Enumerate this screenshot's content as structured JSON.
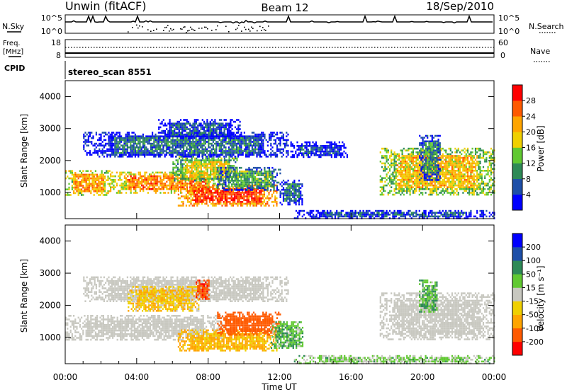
{
  "header": {
    "station": "Unwin (fitACF)",
    "beam": "Beam 12",
    "date": "18/Sep/2010"
  },
  "noise_panel": {
    "left_label": "N.Sky",
    "right_label": "N.Search",
    "tick_top": "10^5",
    "tick_bottom": "10^0"
  },
  "freq_panel": {
    "left_label_1": "Freq.",
    "left_label_2": "[MHz]",
    "left_tick_top": "18",
    "left_tick_bottom": "8",
    "right_label": "Nave",
    "right_tick_top": "60",
    "right_tick_bottom": "0"
  },
  "cpid": {
    "label": "CPID",
    "value": "stereo_scan 8551"
  },
  "colors": {
    "scale": [
      "#0000ff",
      "#1e4fa8",
      "#2e8a57",
      "#61c932",
      "#f0d000",
      "#ffa500",
      "#ff5a00",
      "#ff0000"
    ],
    "velocity": [
      "#ff0000",
      "#ff5a00",
      "#ffa500",
      "#f0d000",
      "#c8c8c0",
      "#61c932",
      "#2e8a57",
      "#1e4fa8",
      "#0000ff"
    ]
  },
  "chart_data": [
    {
      "type": "heatmap",
      "name": "power",
      "ylabel": "Slant Range [km]",
      "ylim": [
        180,
        4500
      ],
      "y_ticks": [
        "1000",
        "2000",
        "3000",
        "4000"
      ],
      "xlim": [
        0,
        24
      ],
      "colorbar_label": "Power [dB]",
      "colorbar_ticks": [
        "4",
        "8",
        "12",
        "16",
        "20",
        "24",
        "28"
      ],
      "colorbar_range": [
        0,
        32
      ],
      "regions": [
        {
          "t0": 0.0,
          "t1": 2.5,
          "r0": 950,
          "r1": 1700,
          "level": 22
        },
        {
          "t0": 2.5,
          "t1": 8.8,
          "r0": 1000,
          "r1": 1650,
          "level": 24
        },
        {
          "t0": 6.0,
          "t1": 9.6,
          "r0": 1350,
          "r1": 2150,
          "level": 18
        },
        {
          "t0": 6.3,
          "t1": 11.8,
          "r0": 580,
          "r1": 1250,
          "level": 28
        },
        {
          "t0": 8.5,
          "t1": 12.0,
          "r0": 1100,
          "r1": 1800,
          "level": 12
        },
        {
          "t0": 12.0,
          "t1": 13.3,
          "r0": 650,
          "r1": 1400,
          "level": 8
        },
        {
          "t0": 1.0,
          "t1": 12.5,
          "r0": 2100,
          "r1": 2900,
          "level": 8
        },
        {
          "t0": 5.2,
          "t1": 9.8,
          "r0": 2700,
          "r1": 3300,
          "level": 6
        },
        {
          "t0": 12.6,
          "t1": 15.8,
          "r0": 2100,
          "r1": 2600,
          "level": 4
        },
        {
          "t0": 17.6,
          "t1": 24.0,
          "r0": 950,
          "r1": 2400,
          "level": 20
        },
        {
          "t0": 19.8,
          "t1": 21.0,
          "r0": 1400,
          "r1": 2800,
          "level": 10
        },
        {
          "t0": 12.8,
          "t1": 24.0,
          "r0": 200,
          "r1": 450,
          "level": 6
        }
      ]
    },
    {
      "type": "heatmap",
      "name": "velocity",
      "ylabel": "Slant Range [km]",
      "ylim": [
        180,
        4500
      ],
      "y_ticks": [
        "1000",
        "2000",
        "3000",
        "4000"
      ],
      "xlim": [
        0,
        24
      ],
      "xlabel": "Time UT",
      "x_ticks": [
        "00:00",
        "04:00",
        "08:00",
        "12:00",
        "16:00",
        "20:00",
        "00:00"
      ],
      "colorbar_label": "Velocity [m s⁻¹]",
      "colorbar_ticks": [
        "-200",
        "-100",
        "-50",
        "-15",
        "15",
        "50",
        "100",
        "200"
      ],
      "regions": [
        {
          "t0": 0.0,
          "t1": 8.8,
          "r0": 950,
          "r1": 1700,
          "value": 0
        },
        {
          "t0": 6.3,
          "t1": 11.8,
          "r0": 580,
          "r1": 1250,
          "value": -60
        },
        {
          "t0": 8.5,
          "t1": 12.0,
          "r0": 1100,
          "r1": 1800,
          "value": -150
        },
        {
          "t0": 11.5,
          "t1": 13.3,
          "r0": 650,
          "r1": 1500,
          "value": 40
        },
        {
          "t0": 1.0,
          "t1": 12.5,
          "r0": 2100,
          "r1": 2900,
          "value": 0
        },
        {
          "t0": 3.5,
          "t1": 7.5,
          "r0": 1800,
          "r1": 2600,
          "value": -40
        },
        {
          "t0": 7.3,
          "t1": 8.0,
          "r0": 2200,
          "r1": 2800,
          "value": -180
        },
        {
          "t0": 17.6,
          "t1": 24.0,
          "r0": 950,
          "r1": 2400,
          "value": 0
        },
        {
          "t0": 19.8,
          "t1": 20.8,
          "r0": 1800,
          "r1": 2800,
          "value": 40
        },
        {
          "t0": 12.8,
          "t1": 24.0,
          "r0": 200,
          "r1": 450,
          "value": 20
        }
      ]
    }
  ]
}
